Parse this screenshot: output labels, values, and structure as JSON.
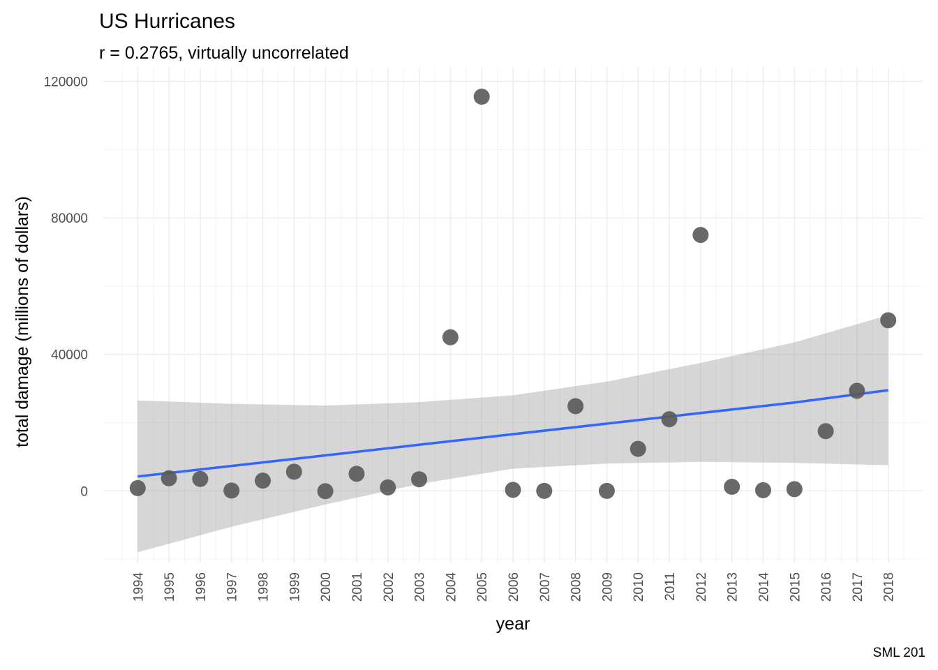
{
  "chart_data": {
    "type": "scatter",
    "title": "US Hurricanes",
    "subtitle": "r = 0.2765, virtually uncorrelated",
    "xlabel": "year",
    "ylabel": "total damage (millions of dollars)",
    "caption": "SML 201",
    "x": [
      1994,
      1995,
      1996,
      1997,
      1998,
      1999,
      2000,
      2001,
      2002,
      2003,
      2004,
      2005,
      2006,
      2007,
      2008,
      2009,
      2010,
      2011,
      2012,
      2013,
      2014,
      2015,
      2016,
      2017,
      2018
    ],
    "y": [
      800,
      3700,
      3500,
      100,
      3000,
      5600,
      -100,
      5000,
      1000,
      3400,
      45000,
      115500,
      300,
      0,
      24800,
      0,
      12300,
      21000,
      75000,
      1200,
      200,
      500,
      17500,
      29300,
      50000
    ],
    "x_ticks": [
      "1994",
      "1995",
      "1996",
      "1997",
      "1998",
      "1999",
      "2000",
      "2001",
      "2002",
      "2003",
      "2004",
      "2005",
      "2006",
      "2007",
      "2008",
      "2009",
      "2010",
      "2011",
      "2012",
      "2013",
      "2014",
      "2015",
      "2016",
      "2017",
      "2018"
    ],
    "y_ticks": [
      0,
      40000,
      80000,
      120000
    ],
    "y_tick_labels": [
      "0",
      "40000",
      "80000",
      "120000"
    ],
    "ylim": [
      -21000,
      124000
    ],
    "xlim": [
      1992.9,
      2019.1
    ],
    "trend": {
      "method": "lm",
      "x": [
        1994,
        1997,
        2000,
        2003,
        2006,
        2009,
        2012,
        2015,
        2018
      ],
      "fit": [
        4200,
        7300,
        10400,
        13500,
        16600,
        19700,
        22800,
        25900,
        29500
      ],
      "lower": [
        -18000,
        -10500,
        -4000,
        2000,
        6500,
        8000,
        8500,
        8200,
        7500
      ],
      "upper": [
        26500,
        25500,
        25000,
        26000,
        28000,
        32000,
        37500,
        43500,
        51500
      ]
    },
    "grid": true,
    "legend": "none",
    "colors": {
      "points": "#595959",
      "trend": "#3366ff",
      "band": "#999999"
    }
  }
}
